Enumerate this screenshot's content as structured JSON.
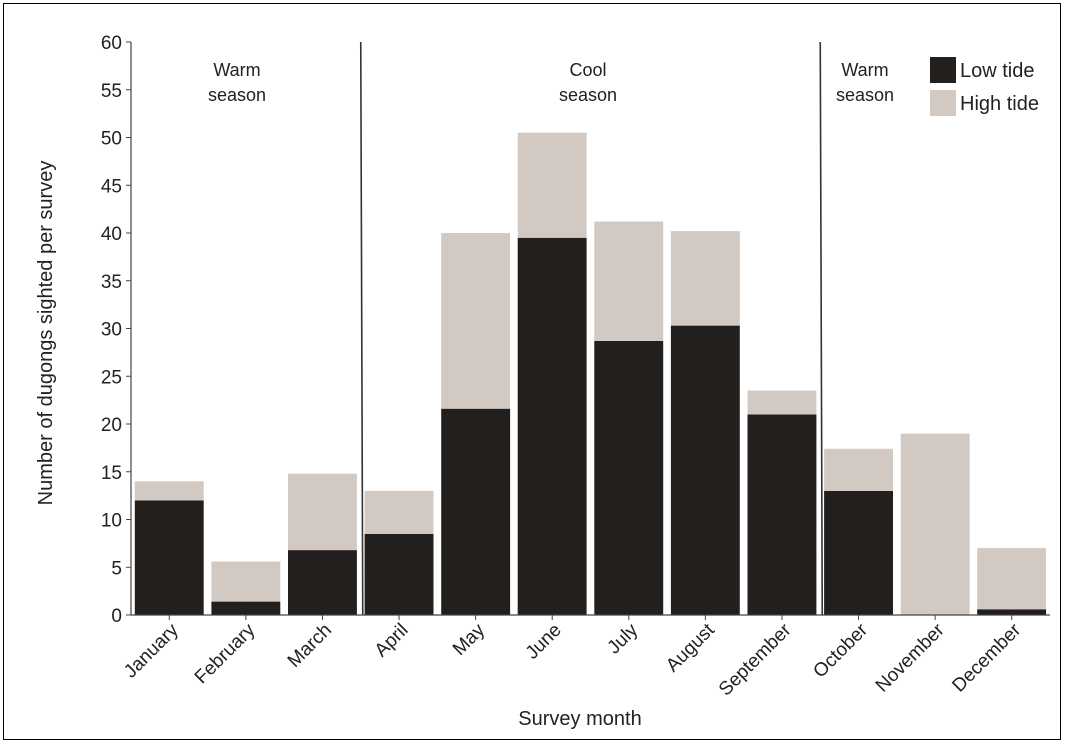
{
  "chart_data": {
    "type": "bar",
    "stacked": true,
    "xlabel": "Survey month",
    "ylabel": "Number of dugongs sighted per survey",
    "ylim": [
      0,
      60
    ],
    "yticks": [
      0,
      5,
      10,
      15,
      20,
      25,
      30,
      35,
      40,
      45,
      50,
      55,
      60
    ],
    "categories": [
      "January",
      "February",
      "March",
      "April",
      "May",
      "June",
      "July",
      "August",
      "September",
      "October",
      "November",
      "December"
    ],
    "series": [
      {
        "name": "Low tide",
        "color": "#231f1c",
        "values": [
          12,
          1.4,
          6.8,
          8.5,
          21.6,
          39.5,
          28.7,
          30.3,
          21,
          13,
          0,
          0.6
        ]
      },
      {
        "name": "High tide",
        "color": "#d3c9c3",
        "values": [
          2,
          4.2,
          8,
          4.5,
          18.4,
          11,
          12.5,
          9.9,
          2.5,
          4.4,
          19,
          6.4
        ]
      }
    ],
    "season_dividers_after": [
      "March",
      "September"
    ],
    "season_labels": [
      {
        "lines": [
          "Warm",
          "season"
        ]
      },
      {
        "lines": [
          "Cool",
          "season"
        ]
      },
      {
        "lines": [
          "Warm",
          "season"
        ]
      }
    ],
    "legend_position": "top-right",
    "grid": false
  }
}
